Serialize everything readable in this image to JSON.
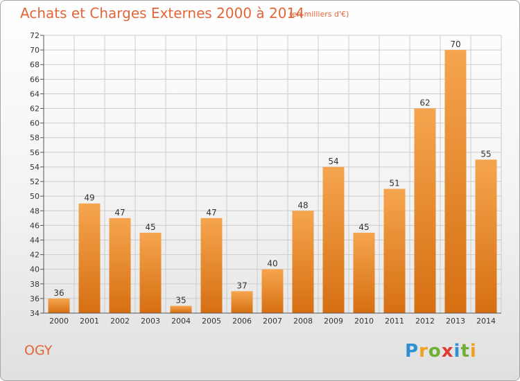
{
  "title": "Achats et Charges Externes 2000 à 2014",
  "subtitle": "(en milliers d'€)",
  "commune": "OGY",
  "logo": {
    "text": "Proxiti",
    "letters": [
      "P",
      "r",
      "o",
      "x",
      "i",
      "t",
      "i"
    ],
    "colors": [
      "#2f8fd1",
      "#f0a020",
      "#70b035",
      "#e23a36",
      "#2f8fd1",
      "#70b035",
      "#f0a020"
    ]
  },
  "colors": {
    "title": "#e2663a",
    "bar_top": "#f5a54e",
    "bar_bottom": "#d66f12",
    "grid": "#cccccc",
    "axis": "#555555"
  },
  "chart_data": {
    "type": "bar",
    "categories": [
      "2000",
      "2001",
      "2002",
      "2003",
      "2004",
      "2005",
      "2006",
      "2007",
      "2008",
      "2009",
      "2010",
      "2011",
      "2012",
      "2013",
      "2014"
    ],
    "values": [
      36,
      49,
      47,
      45,
      35,
      47,
      37,
      40,
      48,
      54,
      45,
      51,
      62,
      70,
      55
    ],
    "ylim": [
      34,
      72
    ],
    "yticks": [
      34,
      36,
      38,
      40,
      42,
      44,
      46,
      48,
      50,
      52,
      54,
      56,
      58,
      60,
      62,
      64,
      66,
      68,
      70,
      72
    ],
    "grid": true,
    "data_labels": true
  }
}
